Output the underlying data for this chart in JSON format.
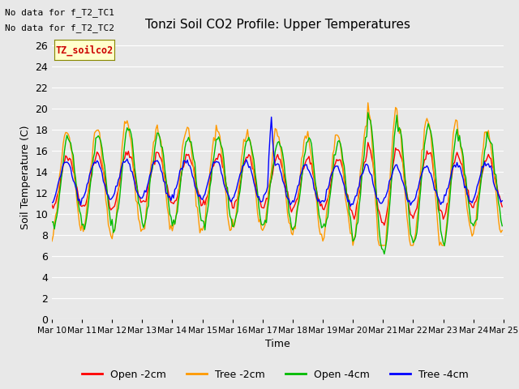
{
  "title": "Tonzi Soil CO2 Profile: Upper Temperatures",
  "xlabel": "Time",
  "ylabel": "Soil Temperature (C)",
  "annotation_lines": [
    "No data for f_T2_TC1",
    "No data for f_T2_TC2"
  ],
  "legend_label": "TZ_soilco2",
  "series_labels": [
    "Open -2cm",
    "Tree -2cm",
    "Open -4cm",
    "Tree -4cm"
  ],
  "series_colors": [
    "#ff0000",
    "#ff9900",
    "#00bb00",
    "#0000ff"
  ],
  "ylim": [
    0,
    27
  ],
  "yticks": [
    0,
    2,
    4,
    6,
    8,
    10,
    12,
    14,
    16,
    18,
    20,
    22,
    24,
    26
  ],
  "background_color": "#e8e8e8",
  "grid_color": "#ffffff",
  "x_tick_labels": [
    "Mar 10",
    "Mar 11",
    "Mar 12",
    "Mar 13",
    "Mar 14",
    "Mar 15",
    "Mar 16",
    "Mar 17",
    "Mar 18",
    "Mar 19",
    "Mar 20",
    "Mar 21",
    "Mar 22",
    "Mar 23",
    "Mar 24",
    "Mar 25"
  ],
  "num_days": 15,
  "pts_per_day": 24
}
